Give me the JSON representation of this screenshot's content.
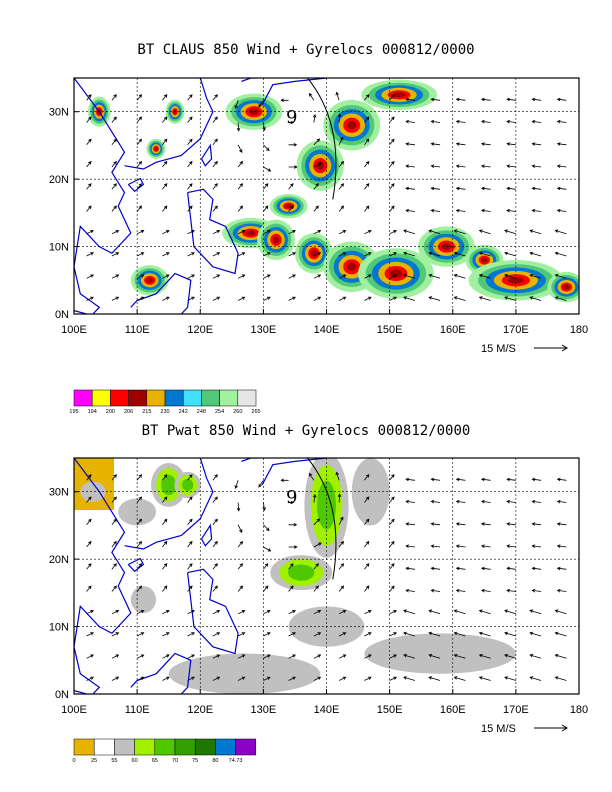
{
  "panels": [
    {
      "title": "BT CLAUS 850 Wind + Gyrelocs 000812/0000",
      "xticks": [
        "100E",
        "110E",
        "120E",
        "130E",
        "140E",
        "150E",
        "160E",
        "170E",
        "180"
      ],
      "yticks": [
        "0N",
        "10N",
        "20N",
        "30N"
      ],
      "reference_vector": "15 M/S",
      "colorbar_colors": [
        "#ff00ff",
        "#ffff00",
        "#ff0000",
        "#a00000",
        "#e6b400",
        "#0078d2",
        "#40e0ff",
        "#50c878",
        "#a0f0a0",
        "#e6e6e6"
      ],
      "colorbar_labels": [
        "195",
        "194",
        "200",
        "206",
        "215",
        "230",
        "242",
        "248",
        "254",
        "260",
        "265"
      ]
    },
    {
      "title": "BT Pwat 850 Wind + Gyrelocs 000812/0000",
      "xticks": [
        "100E",
        "110E",
        "120E",
        "130E",
        "140E",
        "150E",
        "160E",
        "170E",
        "180"
      ],
      "yticks": [
        "0N",
        "10N",
        "20N",
        "30N"
      ],
      "reference_vector": "15 M/S",
      "colorbar_colors": [
        "#e6b400",
        "#ffffff",
        "#c0c0c0",
        "#a0f000",
        "#50c800",
        "#32a000",
        "#1e7800",
        "#0078d2",
        "#8c00c8"
      ],
      "colorbar_labels": [
        "0",
        "25",
        "55",
        "60",
        "65",
        "70",
        "75",
        "80",
        "74.73"
      ]
    }
  ],
  "gyre_marker": "9"
}
